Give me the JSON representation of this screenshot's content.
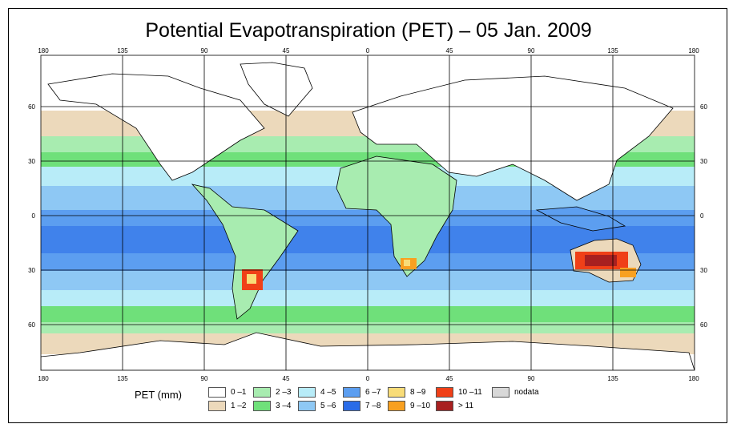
{
  "title": "Potential Evapotranspiration (PET) – 05 Jan. 2009",
  "axes": {
    "longitude_ticks": [
      "180",
      "135",
      "90",
      "45",
      "0",
      "45",
      "90",
      "135",
      "180"
    ],
    "latitude_ticks": [
      "60",
      "30",
      "0",
      "30",
      "60"
    ]
  },
  "legend": {
    "label": "PET (mm)",
    "items": [
      {
        "label": "0 –1",
        "color": "#ffffff"
      },
      {
        "label": "1 –2",
        "color": "#ecd9bb"
      },
      {
        "label": "2 –3",
        "color": "#a8ecb0"
      },
      {
        "label": "3 –4",
        "color": "#6fe07a"
      },
      {
        "label": "4 –5",
        "color": "#b8ecf8"
      },
      {
        "label": "5 –6",
        "color": "#8ec8f4"
      },
      {
        "label": "6 –7",
        "color": "#5c9ef0"
      },
      {
        "label": "7 –8",
        "color": "#2a6ce8"
      },
      {
        "label": "8 –9",
        "color": "#f8dc78"
      },
      {
        "label": "9 –10",
        "color": "#f8a020"
      },
      {
        "label": "10 –11",
        "color": "#f04018"
      },
      {
        "label": "> 11",
        "color": "#a82020"
      },
      {
        "label": "nodata",
        "color": "#d8d8d8"
      }
    ]
  }
}
